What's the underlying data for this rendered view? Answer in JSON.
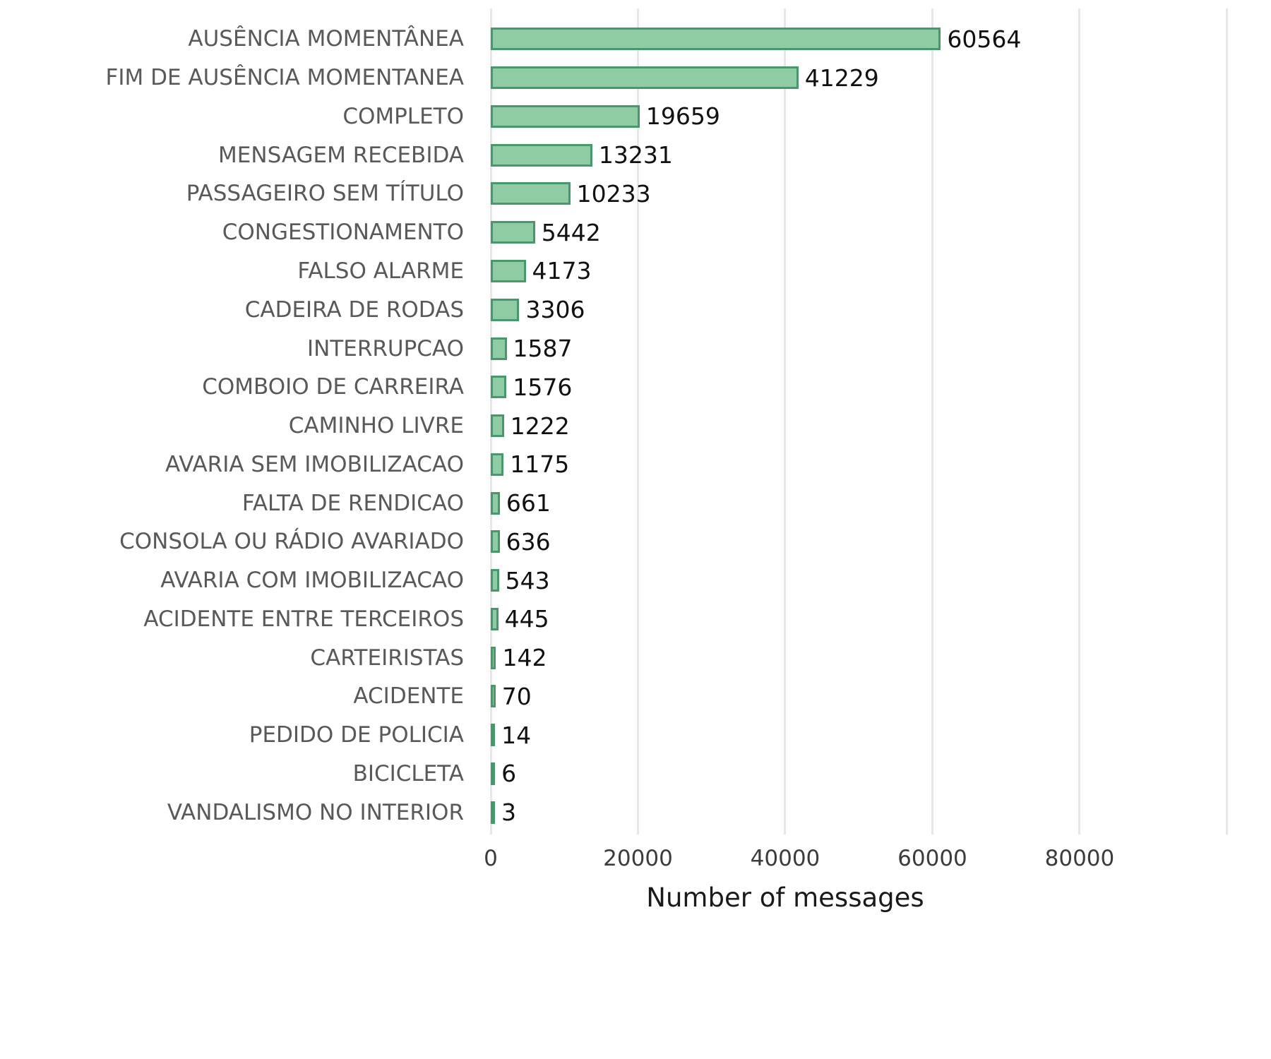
{
  "chart_data": {
    "type": "bar",
    "orientation": "horizontal",
    "title": "",
    "xlabel": "Number of messages",
    "ylabel": "",
    "categories": [
      "AUSÊNCIA MOMENTÂNEA",
      "FIM DE AUSÊNCIA MOMENTANEA",
      "COMPLETO",
      "MENSAGEM RECEBIDA",
      "PASSAGEIRO SEM TÍTULO",
      "CONGESTIONAMENTO",
      "FALSO ALARME",
      "CADEIRA DE RODAS",
      "INTERRUPCAO",
      "COMBOIO DE CARREIRA",
      "CAMINHO LIVRE",
      "AVARIA SEM IMOBILIZACAO",
      "FALTA DE RENDICAO",
      "CONSOLA OU RÁDIO AVARIADO",
      "AVARIA COM IMOBILIZACAO",
      "ACIDENTE ENTRE TERCEIROS",
      "CARTEIRISTAS",
      "ACIDENTE",
      "PEDIDO DE POLICIA",
      "BICICLETA",
      "VANDALISMO NO INTERIOR"
    ],
    "values": [
      60564,
      41229,
      19659,
      13231,
      10233,
      5442,
      4173,
      3306,
      1587,
      1576,
      1222,
      1175,
      661,
      636,
      543,
      445,
      142,
      70,
      14,
      6,
      3
    ],
    "xlim": [
      0,
      106000
    ],
    "xticks": [
      0,
      20000,
      40000,
      60000,
      80000,
      100000
    ],
    "xtick_labels": [
      "0",
      "20000",
      "40000",
      "60000",
      "80000",
      ""
    ],
    "grid": "vertical",
    "legend": "none",
    "bar_fill": "#8fcba5",
    "bar_edge": "#47996b",
    "category_label_color": "#595959",
    "value_label_color": "#111111",
    "gridline_color": "#e7e7e7"
  }
}
